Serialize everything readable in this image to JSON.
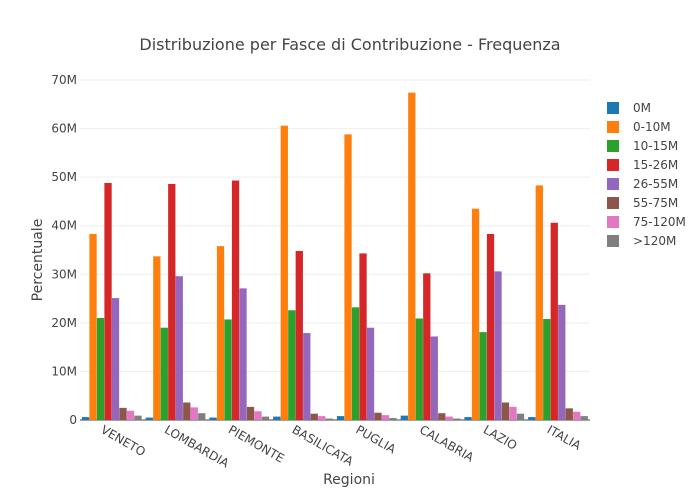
{
  "chart_data": {
    "type": "bar",
    "title": "Distribuzione per Fasce di Contribuzione - Frequenza",
    "xlabel": "Regioni",
    "ylabel": "Percentuale",
    "ylim": [
      0,
      70000000
    ],
    "yticks": [
      0,
      10000000,
      20000000,
      30000000,
      40000000,
      50000000,
      60000000,
      70000000
    ],
    "ytick_labels": [
      "0",
      "10M",
      "20M",
      "30M",
      "40M",
      "50M",
      "60M",
      "70M"
    ],
    "grid": true,
    "legend_position": "right",
    "categories": [
      "VENETO",
      "LOMBARDIA",
      "PIEMONTE",
      "BASILICATA",
      "PUGLIA",
      "CALABRIA",
      "LAZIO",
      "ITALIA"
    ],
    "series": [
      {
        "name": "0M",
        "color": "#1f77b4",
        "values": [
          600000,
          500000,
          500000,
          700000,
          800000,
          900000,
          600000,
          600000
        ]
      },
      {
        "name": "0-10M",
        "color": "#ff7f0e",
        "values": [
          38300000,
          33700000,
          35800000,
          60600000,
          58800000,
          67400000,
          43500000,
          48300000
        ]
      },
      {
        "name": "10-15M",
        "color": "#2ca02c",
        "values": [
          21000000,
          19000000,
          20700000,
          22600000,
          23200000,
          20900000,
          18100000,
          20800000
        ]
      },
      {
        "name": "15-26M",
        "color": "#d62728",
        "values": [
          48800000,
          48600000,
          49300000,
          34800000,
          34300000,
          30200000,
          38300000,
          40600000
        ]
      },
      {
        "name": "26-55M",
        "color": "#9467bd",
        "values": [
          25100000,
          29600000,
          27100000,
          17900000,
          19000000,
          17200000,
          30600000,
          23700000
        ]
      },
      {
        "name": "55-75M",
        "color": "#8c564b",
        "values": [
          2500000,
          3600000,
          2700000,
          1300000,
          1500000,
          1400000,
          3600000,
          2400000
        ]
      },
      {
        "name": "75-120M",
        "color": "#e377c2",
        "values": [
          1900000,
          2600000,
          1800000,
          800000,
          1000000,
          700000,
          2700000,
          1700000
        ]
      },
      {
        "name": ">120M",
        "color": "#7f7f7f",
        "values": [
          900000,
          1400000,
          700000,
          300000,
          400000,
          300000,
          1300000,
          800000
        ]
      }
    ]
  }
}
